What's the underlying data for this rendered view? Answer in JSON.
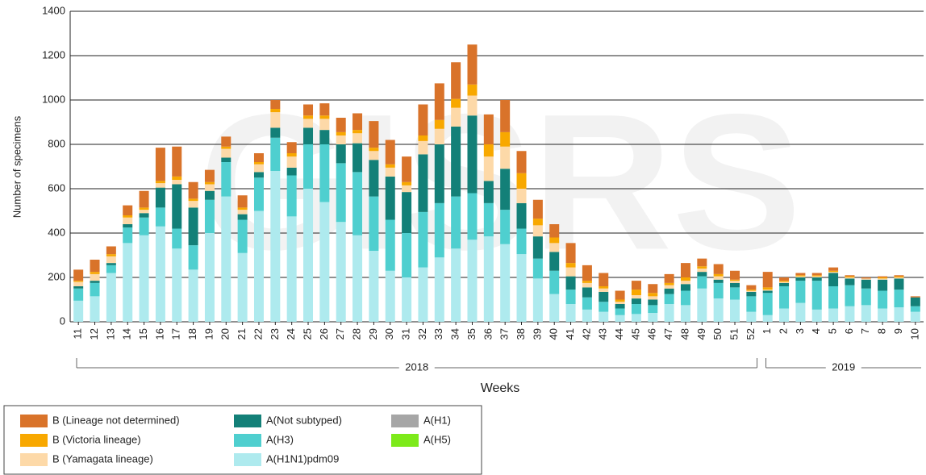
{
  "chart_data": {
    "type": "stacked_bar",
    "watermark": "GISRS",
    "y_label": "Number of specimens",
    "x_label": "Weeks",
    "years": [
      "2018",
      "2019"
    ],
    "categories": [
      "11",
      "12",
      "13",
      "14",
      "15",
      "16",
      "17",
      "18",
      "19",
      "20",
      "21",
      "22",
      "23",
      "24",
      "25",
      "26",
      "27",
      "28",
      "29",
      "30",
      "31",
      "32",
      "33",
      "34",
      "35",
      "36",
      "37",
      "38",
      "39",
      "40",
      "41",
      "42",
      "43",
      "44",
      "45",
      "46",
      "47",
      "48",
      "49",
      "50",
      "51",
      "52",
      "1",
      "2",
      "3",
      "4",
      "5",
      "6",
      "7",
      "8",
      "9",
      "10"
    ],
    "ylim": [
      0,
      1400
    ],
    "yticks": [
      0,
      200,
      400,
      600,
      800,
      1000,
      1200,
      1400
    ],
    "grid": true,
    "series": [
      {
        "name": "A(H1N1)pdm09",
        "color": "#aeeaee",
        "values": [
          95,
          115,
          220,
          355,
          390,
          430,
          330,
          235,
          400,
          565,
          310,
          500,
          680,
          475,
          600,
          540,
          450,
          390,
          320,
          230,
          200,
          245,
          290,
          330,
          370,
          385,
          350,
          305,
          195,
          125,
          80,
          55,
          45,
          30,
          35,
          40,
          80,
          75,
          150,
          105,
          100,
          45,
          30,
          60,
          85,
          55,
          60,
          70,
          75,
          60,
          65,
          45
        ]
      },
      {
        "name": "A(H3)",
        "color": "#4fcfcf",
        "values": [
          55,
          60,
          35,
          70,
          80,
          85,
          90,
          110,
          150,
          155,
          150,
          150,
          150,
          185,
          200,
          260,
          265,
          285,
          245,
          230,
          200,
          250,
          245,
          235,
          210,
          150,
          155,
          115,
          90,
          105,
          65,
          55,
          45,
          30,
          45,
          35,
          45,
          65,
          55,
          70,
          55,
          70,
          100,
          100,
          100,
          130,
          100,
          95,
          75,
          80,
          80,
          25
        ]
      },
      {
        "name": "A(Not subtyped)",
        "color": "#138078",
        "values": [
          10,
          10,
          10,
          15,
          20,
          90,
          200,
          170,
          40,
          20,
          25,
          25,
          45,
          35,
          75,
          65,
          85,
          130,
          165,
          195,
          185,
          260,
          265,
          315,
          350,
          100,
          185,
          115,
          100,
          85,
          60,
          45,
          45,
          20,
          25,
          25,
          25,
          30,
          20,
          15,
          20,
          20,
          10,
          15,
          15,
          15,
          60,
          30,
          40,
          50,
          50,
          40
        ]
      },
      {
        "name": "A(H1)",
        "color": "#a6a6a6",
        "values": [
          0,
          0,
          0,
          0,
          0,
          0,
          0,
          0,
          0,
          0,
          0,
          0,
          0,
          0,
          0,
          0,
          0,
          0,
          0,
          0,
          0,
          0,
          0,
          0,
          0,
          0,
          0,
          0,
          0,
          0,
          0,
          0,
          0,
          0,
          0,
          0,
          0,
          0,
          0,
          0,
          0,
          0,
          0,
          0,
          0,
          0,
          0,
          0,
          0,
          0,
          0,
          0
        ]
      },
      {
        "name": "A(H5)",
        "color": "#7dea1a",
        "values": [
          0,
          0,
          0,
          0,
          0,
          0,
          0,
          0,
          0,
          0,
          0,
          0,
          0,
          0,
          0,
          0,
          0,
          0,
          0,
          0,
          0,
          0,
          0,
          0,
          0,
          0,
          0,
          0,
          0,
          0,
          0,
          0,
          0,
          0,
          0,
          0,
          0,
          0,
          0,
          0,
          0,
          0,
          0,
          0,
          0,
          0,
          0,
          0,
          0,
          0,
          0,
          0
        ]
      },
      {
        "name": "B (Yamagata lineage)",
        "color": "#fdd9a8",
        "values": [
          20,
          30,
          30,
          30,
          15,
          20,
          20,
          30,
          30,
          40,
          20,
          35,
          70,
          50,
          40,
          50,
          40,
          45,
          40,
          40,
          30,
          60,
          70,
          85,
          90,
          110,
          100,
          65,
          50,
          40,
          40,
          20,
          15,
          10,
          15,
          15,
          15,
          15,
          15,
          15,
          10,
          5,
          5,
          5,
          5,
          5,
          5,
          5,
          5,
          5,
          5,
          0
        ]
      },
      {
        "name": "B (Victoria lineage)",
        "color": "#f8a800",
        "values": [
          5,
          10,
          10,
          10,
          10,
          10,
          15,
          10,
          10,
          10,
          10,
          10,
          15,
          15,
          15,
          15,
          15,
          15,
          15,
          15,
          15,
          25,
          40,
          40,
          50,
          55,
          65,
          70,
          30,
          25,
          20,
          10,
          10,
          10,
          25,
          15,
          10,
          15,
          10,
          10,
          5,
          5,
          10,
          5,
          5,
          5,
          5,
          5,
          0,
          5,
          5,
          0
        ]
      },
      {
        "name": "B (Lineage not determined)",
        "color": "#d9732a",
        "values": [
          50,
          55,
          35,
          45,
          75,
          150,
          135,
          75,
          55,
          45,
          55,
          40,
          40,
          50,
          50,
          55,
          65,
          75,
          120,
          110,
          115,
          140,
          165,
          165,
          180,
          135,
          145,
          100,
          85,
          60,
          90,
          70,
          60,
          40,
          40,
          40,
          40,
          65,
          35,
          45,
          40,
          20,
          70,
          15,
          10,
          10,
          15,
          5,
          5,
          5,
          5,
          5
        ]
      }
    ]
  }
}
